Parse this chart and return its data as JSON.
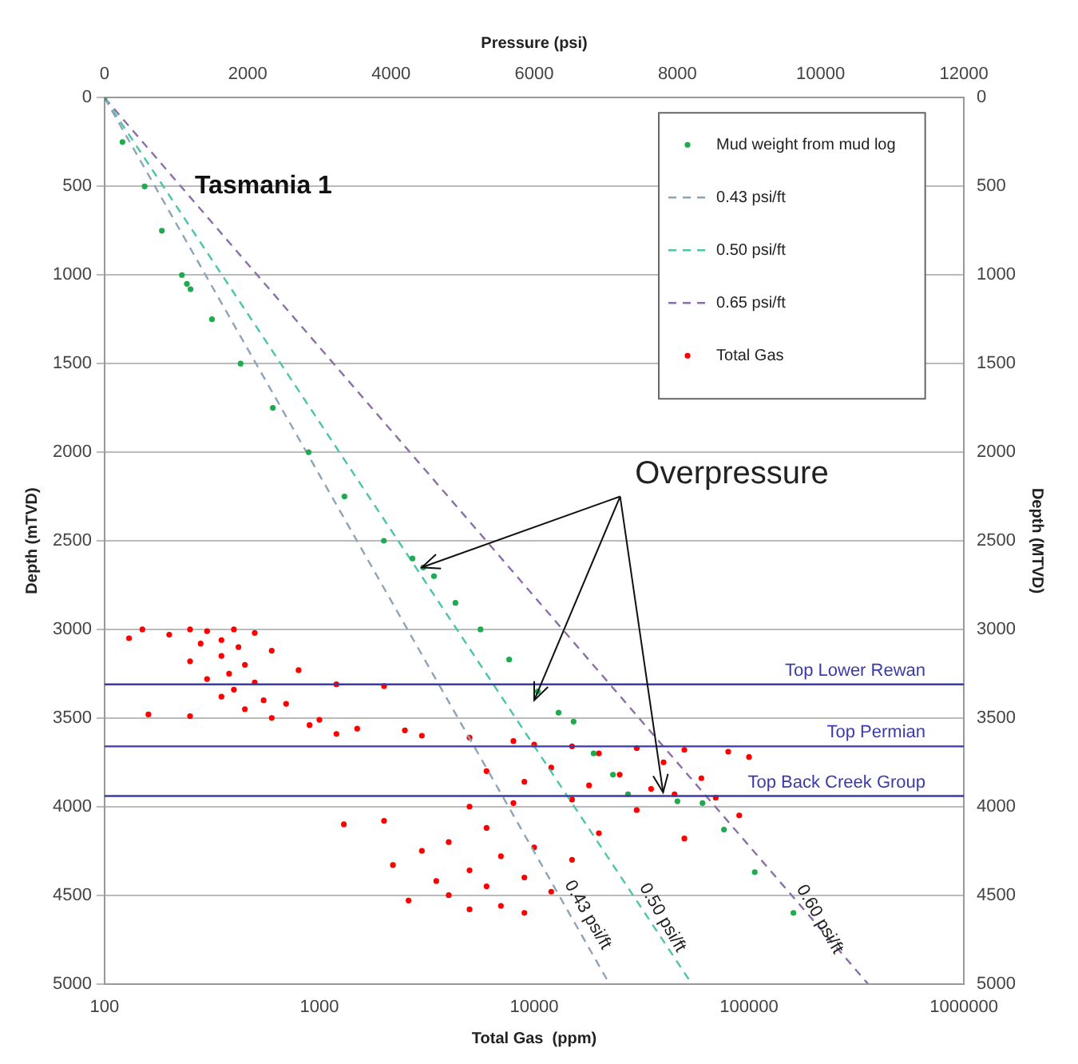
{
  "chart_data": {
    "type": "scatter",
    "title": "Tasmania 1",
    "xlabel": "Total Gas  (ppm)",
    "x2label": "Pressure (psi)",
    "ylabel": "Depth (mTVD)",
    "y2label": "Depth (MTVD)",
    "log": "x",
    "xlim": [
      100,
      1000000
    ],
    "xticks": [
      100,
      1000,
      10000,
      100000,
      1000000
    ],
    "x2lim": [
      0,
      12000
    ],
    "x2ticks": [
      0,
      2000,
      4000,
      6000,
      8000,
      10000,
      12000
    ],
    "ylim": [
      5000,
      0
    ],
    "yticks": [
      0,
      500,
      1000,
      1500,
      2000,
      2500,
      3000,
      3500,
      4000,
      4500,
      5000
    ],
    "y2lim": [
      5000,
      0
    ],
    "y2ticks": [
      0,
      500,
      1000,
      1500,
      2000,
      2500,
      3000,
      3500,
      4000,
      4500,
      5000
    ],
    "grid": "y",
    "legend": "top right",
    "series": [
      {
        "name": "Mud weight from mud log",
        "type": "scatter",
        "axis": "x2",
        "marker": "circle",
        "color": "#1faa4f",
        "x": [
          0,
          250,
          560,
          800,
          1080,
          1150,
          1200,
          1500,
          1900,
          2350,
          2850,
          3350,
          3900,
          4300,
          4450,
          4600,
          4900,
          5250,
          5650,
          6050,
          6340,
          6550,
          6830,
          7100,
          7310,
          8000,
          8350,
          8650,
          9080,
          9620
        ],
        "values": [
          0,
          250,
          500,
          750,
          1000,
          1050,
          1080,
          1250,
          1500,
          1750,
          2000,
          2250,
          2500,
          2600,
          2650,
          2700,
          2850,
          3000,
          3170,
          3350,
          3470,
          3520,
          3700,
          3820,
          3930,
          3970,
          3980,
          4130,
          4370,
          4600
        ]
      },
      {
        "name": "0.43 psi/ft",
        "type": "line",
        "axis": "x2",
        "marker": "none",
        "line_style": "dashed",
        "color": "#8fa3b8",
        "x": [
          0,
          7050
        ],
        "values": [
          0,
          5000
        ]
      },
      {
        "name": "0.50 psi/ft",
        "type": "line",
        "axis": "x2",
        "marker": "none",
        "line_style": "dashed",
        "color": "#4cc4a8",
        "x": [
          0,
          8200
        ],
        "values": [
          0,
          5000
        ]
      },
      {
        "name": "0.65 psi/ft",
        "type": "line",
        "axis": "x2",
        "marker": "none",
        "line_style": "dashed",
        "color": "#8a6fa8",
        "x": [
          0,
          10660
        ],
        "values": [
          0,
          5000
        ]
      },
      {
        "name": "Total Gas",
        "type": "scatter",
        "marker": "circle",
        "color": "#ff0000",
        "x": [
          150,
          250,
          400,
          300,
          500,
          200,
          130,
          350,
          280,
          420,
          600,
          350,
          250,
          450,
          800,
          380,
          300,
          500,
          1200,
          2000,
          400,
          350,
          550,
          700,
          450,
          160,
          250,
          600,
          1000,
          900,
          1500,
          2500,
          1200,
          3000,
          5000,
          8000,
          10000,
          15000,
          30000,
          50000,
          80000,
          20000,
          100000,
          40000,
          12000,
          6000,
          25000,
          60000,
          9000,
          18000,
          35000,
          45000,
          70000,
          15000,
          8000,
          5000,
          30000,
          90000,
          2000,
          1300,
          6000,
          20000,
          50000,
          4000,
          10000,
          3000,
          7000,
          15000,
          2200,
          5000,
          9000,
          3500,
          6000,
          12000,
          4000,
          2600,
          7000,
          5000,
          9000
        ],
        "values": [
          3000,
          3000,
          3000,
          3010,
          3020,
          3030,
          3050,
          3060,
          3080,
          3100,
          3120,
          3150,
          3180,
          3200,
          3230,
          3250,
          3280,
          3300,
          3310,
          3320,
          3340,
          3380,
          3400,
          3420,
          3450,
          3480,
          3490,
          3500,
          3510,
          3540,
          3560,
          3570,
          3590,
          3600,
          3610,
          3630,
          3650,
          3660,
          3670,
          3680,
          3690,
          3700,
          3720,
          3750,
          3780,
          3800,
          3820,
          3840,
          3860,
          3880,
          3900,
          3930,
          3950,
          3960,
          3980,
          4000,
          4020,
          4050,
          4080,
          4100,
          4120,
          4150,
          4180,
          4200,
          4230,
          4250,
          4280,
          4300,
          4330,
          4360,
          4400,
          4420,
          4450,
          4480,
          4500,
          4530,
          4560,
          4580,
          4600
        ]
      }
    ],
    "ref_lines": [
      {
        "axis": "y",
        "value": 3310,
        "label": "Top Lower Rewan",
        "color": "#3a3aa8"
      },
      {
        "axis": "y",
        "value": 3660,
        "label": "Top Permian",
        "color": "#3a3aa8"
      },
      {
        "axis": "y",
        "value": 3940,
        "label": "Top Back Creek Group",
        "color": "#3a3aa8"
      }
    ],
    "annotations": [
      {
        "text": "Overpressure",
        "x": 3000,
        "y": 2650
      },
      "0.43 psi/ft",
      "0.50 psi/ft",
      "0.60 psi/ft"
    ]
  }
}
